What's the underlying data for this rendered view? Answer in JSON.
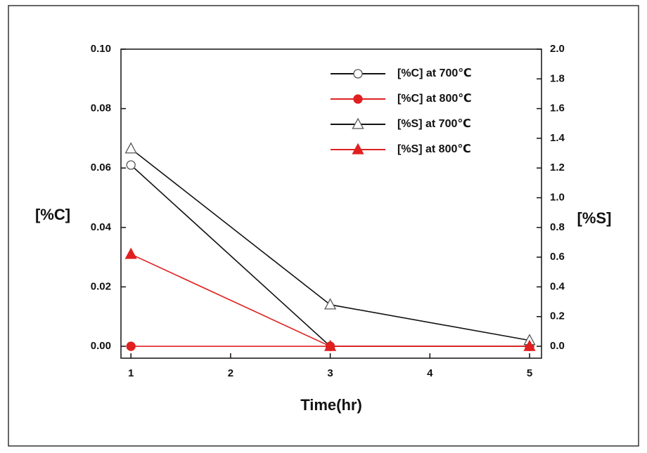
{
  "chart_data": {
    "type": "line",
    "x": [
      1,
      3,
      5
    ],
    "xlabel": "Time(hr)",
    "ylabel": "[%C]",
    "y2label": "[%S]",
    "xlim": [
      0.9,
      5.12
    ],
    "xticks": [
      1,
      2,
      3,
      4,
      5
    ],
    "ylim": [
      -0.004,
      0.1
    ],
    "yticks": [
      {
        "value": 0,
        "label": "0.00"
      },
      {
        "value": 0.02,
        "label": "0.02"
      },
      {
        "value": 0.04,
        "label": "0.04"
      },
      {
        "value": 0.06,
        "label": "0.06"
      },
      {
        "value": 0.08,
        "label": "0.08"
      },
      {
        "value": 0.1,
        "label": "0.10"
      }
    ],
    "y2lim": [
      -0.08,
      2.0
    ],
    "y2ticks": [
      {
        "value": 0,
        "label": "0.0"
      },
      {
        "value": 0.2,
        "label": "0.2"
      },
      {
        "value": 0.4,
        "label": "0.4"
      },
      {
        "value": 0.6,
        "label": "0.6"
      },
      {
        "value": 0.8,
        "label": "0.8"
      },
      {
        "value": 1,
        "label": "1.0"
      },
      {
        "value": 1.2,
        "label": "1.2"
      },
      {
        "value": 1.4,
        "label": "1.4"
      },
      {
        "value": 1.6,
        "label": "1.6"
      },
      {
        "value": 1.8,
        "label": "1.8"
      },
      {
        "value": 2,
        "label": "2.0"
      }
    ],
    "series": [
      {
        "name": "[%C] at 700℃",
        "color": "#111111",
        "marker": "circle-open",
        "values": [
          0.061,
          0,
          0
        ]
      },
      {
        "name": "[%C] at 800℃",
        "color": "#e02020",
        "marker": "circle-filled",
        "values": [
          0,
          0,
          0
        ]
      },
      {
        "name": "[%S] at 700℃",
        "color": "#111111",
        "marker": "triangle-open",
        "axis": "y2",
        "values": [
          1.33,
          0.28,
          0.04
        ]
      },
      {
        "name": "[%S] at 800℃",
        "color": "#e02020",
        "marker": "triangle-filled",
        "axis": "y2",
        "values": [
          0.62,
          0,
          0
        ]
      }
    ]
  }
}
